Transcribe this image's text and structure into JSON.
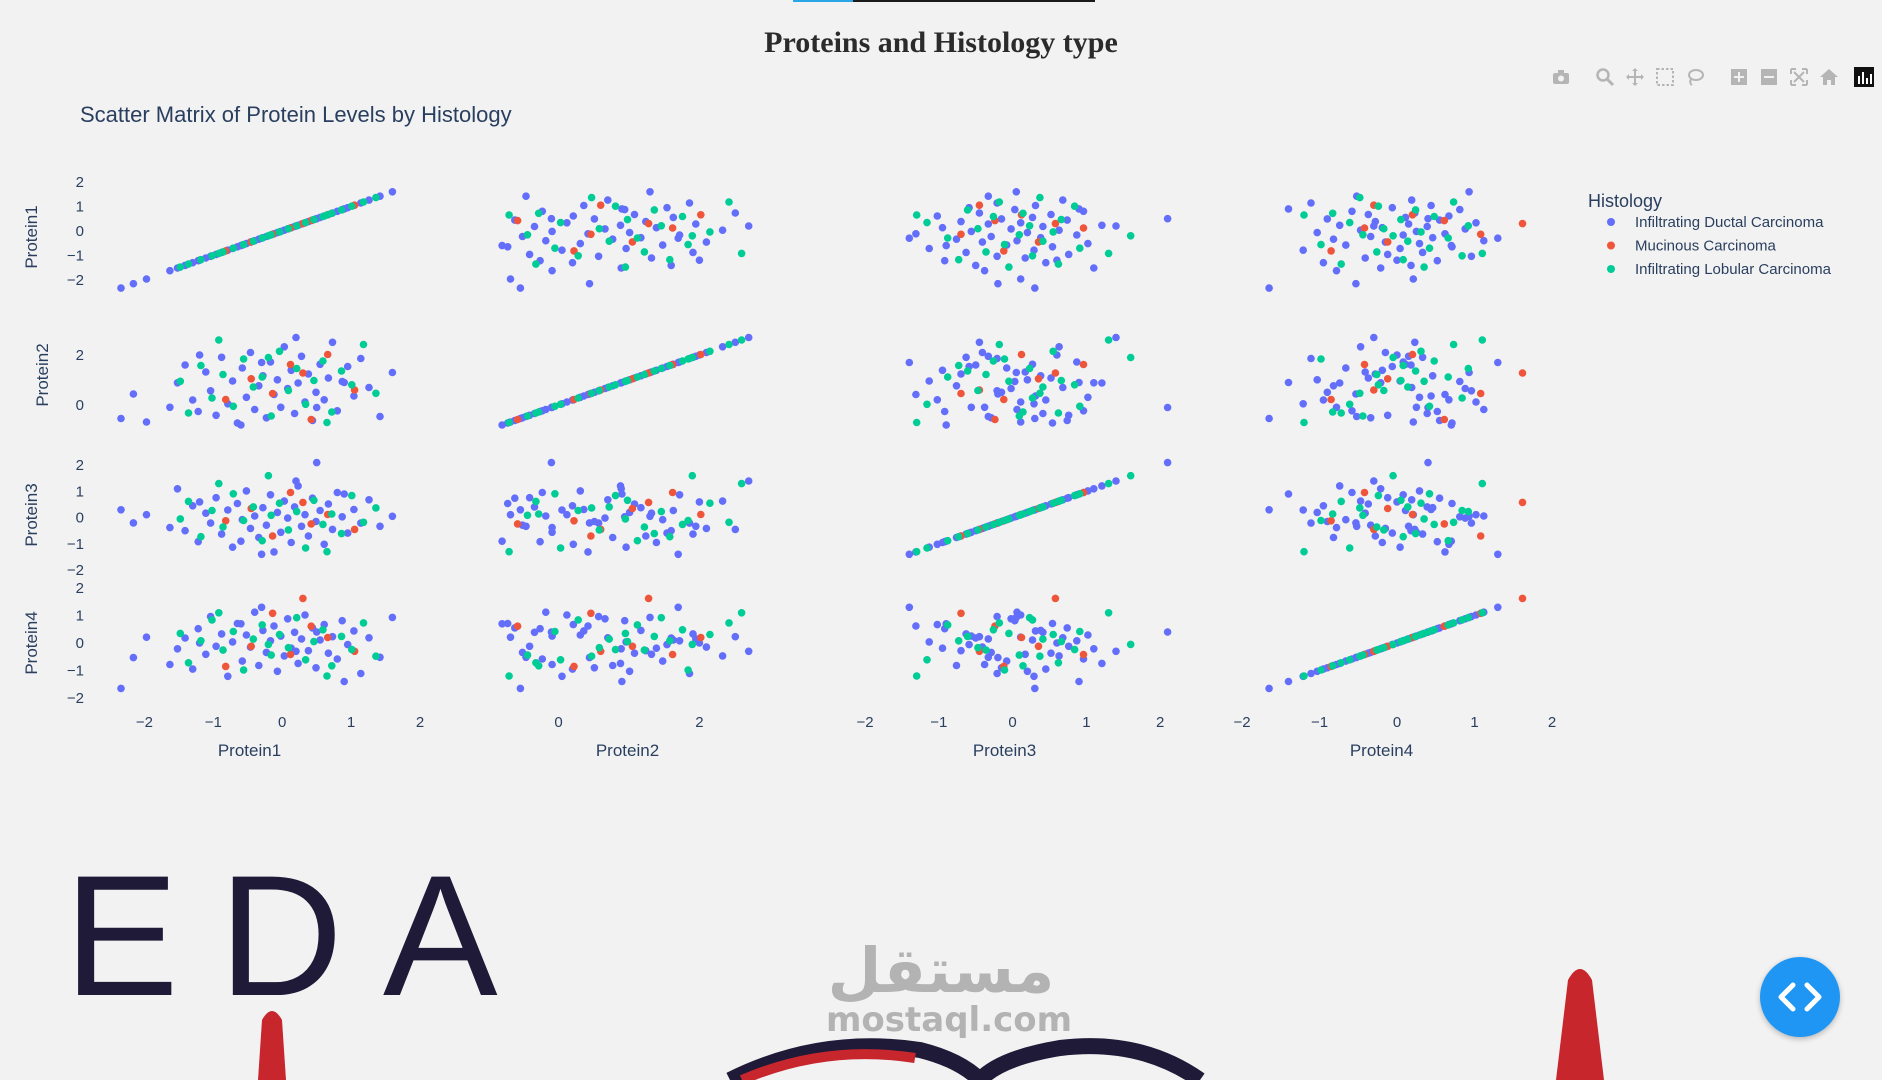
{
  "page": {
    "title": "Proteins and Histology type",
    "banner_text": "EDA",
    "watermark_arabic": "مستقل",
    "watermark_latin": "mostaql.com"
  },
  "modebar": {
    "buttons": [
      "camera-icon",
      "zoom-icon",
      "pan-icon",
      "box-select-icon",
      "lasso-icon",
      "zoom-in-icon",
      "zoom-out-icon",
      "autoscale-icon",
      "reset-axes-icon"
    ],
    "logo": "plotly-logo-icon"
  },
  "chart_data": {
    "type": "scatter-matrix",
    "title": "Scatter Matrix of Protein Levels by Histology",
    "dimensions": [
      "Protein1",
      "Protein2",
      "Protein3",
      "Protein4"
    ],
    "legend": {
      "title": "Histology",
      "placement": "top-right",
      "entries": [
        {
          "name": "Infiltrating Ductal Carcinoma",
          "color": "#636efa"
        },
        {
          "name": "Mucinous Carcinoma",
          "color": "#ef553b"
        },
        {
          "name": "Infiltrating Lobular Carcinoma",
          "color": "#00cc96"
        }
      ]
    },
    "axes": {
      "Protein1": {
        "range": [
          -2.5,
          2.0
        ],
        "ticks": [
          -2,
          -1,
          0,
          1,
          2
        ]
      },
      "Protein2": {
        "range": [
          -1.0,
          3.4
        ],
        "ticks": [
          0,
          2
        ]
      },
      "Protein3": {
        "range": [
          -2.0,
          2.2
        ],
        "ticks": [
          -2,
          -1,
          0,
          1,
          2
        ]
      },
      "Protein4": {
        "range": [
          -2.0,
          2.0
        ],
        "ticks": [
          -2,
          -1,
          0,
          1,
          2
        ]
      }
    },
    "points": [
      {
        "h": 0,
        "v": [
          -2.34,
          -0.54,
          0.3,
          -1.65
        ]
      },
      {
        "h": 0,
        "v": [
          -2.16,
          0.44,
          -0.2,
          -0.53
        ]
      },
      {
        "h": 0,
        "v": [
          -1.97,
          -0.68,
          0.11,
          0.21
        ]
      },
      {
        "h": 0,
        "v": [
          -1.63,
          -0.09,
          -0.38,
          -0.78
        ]
      },
      {
        "h": 0,
        "v": [
          -1.52,
          0.89,
          1.1,
          -0.21
        ]
      },
      {
        "h": 0,
        "v": [
          -1.41,
          1.6,
          -0.5,
          0.18
        ]
      },
      {
        "h": 0,
        "v": [
          -1.3,
          0.2,
          0.45,
          -0.95
        ]
      },
      {
        "h": 0,
        "v": [
          -1.22,
          -0.26,
          -0.92,
          0.52
        ]
      },
      {
        "h": 0,
        "v": [
          -1.11,
          1.32,
          0.17,
          -0.41
        ]
      },
      {
        "h": 0,
        "v": [
          -1.04,
          0.57,
          -0.21,
          0.96
        ]
      },
      {
        "h": 0,
        "v": [
          -0.96,
          -0.41,
          0.76,
          -0.12
        ]
      },
      {
        "h": 0,
        "v": [
          -0.88,
          1.91,
          -0.63,
          0.33
        ]
      },
      {
        "h": 0,
        "v": [
          -0.79,
          0.05,
          0.29,
          -1.21
        ]
      },
      {
        "h": 0,
        "v": [
          -0.72,
          0.96,
          -1.13,
          0.04
        ]
      },
      {
        "h": 0,
        "v": [
          -0.65,
          -0.72,
          0.54,
          0.71
        ]
      },
      {
        "h": 0,
        "v": [
          -0.58,
          1.48,
          -0.08,
          -0.66
        ]
      },
      {
        "h": 0,
        "v": [
          -0.52,
          0.31,
          1.02,
          0.29
        ]
      },
      {
        "h": 0,
        "v": [
          -0.46,
          2.1,
          -0.41,
          -0.15
        ]
      },
      {
        "h": 0,
        "v": [
          -0.4,
          -0.18,
          0.06,
          1.12
        ]
      },
      {
        "h": 0,
        "v": [
          -0.34,
          0.77,
          -0.76,
          -0.82
        ]
      },
      {
        "h": 0,
        "v": [
          -0.28,
          1.17,
          0.38,
          0.46
        ]
      },
      {
        "h": 0,
        "v": [
          -0.23,
          -0.51,
          -0.29,
          -0.34
        ]
      },
      {
        "h": 0,
        "v": [
          -0.17,
          1.72,
          0.87,
          0.08
        ]
      },
      {
        "h": 0,
        "v": [
          -0.12,
          0.42,
          -1.31,
          0.62
        ]
      },
      {
        "h": 0,
        "v": [
          -0.07,
          1.01,
          0.2,
          -1.03
        ]
      },
      {
        "h": 0,
        "v": [
          -0.02,
          -0.09,
          -0.56,
          0.25
        ]
      },
      {
        "h": 0,
        "v": [
          0.03,
          2.33,
          0.63,
          -0.47
        ]
      },
      {
        "h": 0,
        "v": [
          0.08,
          0.66,
          -0.02,
          0.88
        ]
      },
      {
        "h": 0,
        "v": [
          0.13,
          1.39,
          -0.95,
          -0.19
        ]
      },
      {
        "h": 0,
        "v": [
          0.18,
          -0.34,
          0.41,
          0.39
        ]
      },
      {
        "h": 0,
        "v": [
          0.23,
          0.88,
          1.21,
          -0.74
        ]
      },
      {
        "h": 0,
        "v": [
          0.28,
          1.95,
          -0.33,
          0.15
        ]
      },
      {
        "h": 0,
        "v": [
          0.33,
          0.12,
          0.11,
          1.02
        ]
      },
      {
        "h": 0,
        "v": [
          0.38,
          1.24,
          -0.7,
          -0.28
        ]
      },
      {
        "h": 0,
        "v": [
          0.44,
          -0.62,
          0.74,
          0.55
        ]
      },
      {
        "h": 0,
        "v": [
          0.49,
          0.51,
          -0.15,
          -0.9
        ]
      },
      {
        "h": 0,
        "v": [
          0.55,
          1.63,
          0.27,
          0.11
        ]
      },
      {
        "h": 0,
        "v": [
          0.61,
          0.21,
          -1.02,
          0.67
        ]
      },
      {
        "h": 0,
        "v": [
          0.67,
          1.08,
          0.52,
          -0.37
        ]
      },
      {
        "h": 0,
        "v": [
          0.73,
          2.51,
          -0.45,
          0.23
        ]
      },
      {
        "h": 0,
        "v": [
          0.8,
          -0.23,
          0.96,
          -0.58
        ]
      },
      {
        "h": 0,
        "v": [
          0.87,
          0.94,
          0.03,
          0.81
        ]
      },
      {
        "h": 0,
        "v": [
          0.95,
          1.54,
          -0.59,
          -0.06
        ]
      },
      {
        "h": 0,
        "v": [
          1.04,
          0.36,
          0.31,
          0.44
        ]
      },
      {
        "h": 0,
        "v": [
          1.14,
          1.86,
          -0.21,
          -1.11
        ]
      },
      {
        "h": 0,
        "v": [
          1.26,
          0.7,
          0.68,
          0.19
        ]
      },
      {
        "h": 0,
        "v": [
          1.42,
          -0.46,
          -0.33,
          -0.52
        ]
      },
      {
        "h": 0,
        "v": [
          1.6,
          1.3,
          0.05,
          0.93
        ]
      },
      {
        "h": 0,
        "v": [
          -0.6,
          -0.8,
          -0.9,
          0.7
        ]
      },
      {
        "h": 0,
        "v": [
          0.2,
          2.7,
          1.4,
          -0.3
        ]
      },
      {
        "h": 0,
        "v": [
          0.5,
          -0.1,
          2.1,
          0.4
        ]
      },
      {
        "h": 0,
        "v": [
          -0.3,
          1.7,
          -1.4,
          1.3
        ]
      },
      {
        "h": 0,
        "v": [
          0.9,
          0.9,
          0.9,
          -1.4
        ]
      },
      {
        "h": 0,
        "v": [
          -1.2,
          2.0,
          0.6,
          0.0
        ]
      },
      {
        "h": 1,
        "v": [
          -0.45,
          1.05,
          0.35,
          -0.12
        ]
      },
      {
        "h": 1,
        "v": [
          0.42,
          -0.58,
          -0.24,
          0.61
        ]
      },
      {
        "h": 1,
        "v": [
          0.12,
          1.62,
          0.96,
          -0.42
        ]
      },
      {
        "h": 1,
        "v": [
          -0.14,
          0.46,
          -0.7,
          1.08
        ]
      },
      {
        "h": 1,
        "v": [
          0.66,
          2.02,
          0.12,
          0.2
        ]
      },
      {
        "h": 1,
        "v": [
          -0.82,
          0.22,
          -0.12,
          -0.85
        ]
      },
      {
        "h": 1,
        "v": [
          0.3,
          1.28,
          0.58,
          1.62
        ]
      },
      {
        "h": 1,
        "v": [
          1.05,
          0.6,
          -0.45,
          -0.3
        ]
      },
      {
        "h": 2,
        "v": [
          -1.48,
          0.95,
          -0.05,
          0.35
        ]
      },
      {
        "h": 2,
        "v": [
          -1.36,
          -0.32,
          0.62,
          -0.72
        ]
      },
      {
        "h": 2,
        "v": [
          -1.18,
          1.58,
          -0.73,
          0.08
        ]
      },
      {
        "h": 2,
        "v": [
          -1.02,
          0.28,
          0.27,
          0.84
        ]
      },
      {
        "h": 2,
        "v": [
          -0.86,
          1.22,
          -0.36,
          -0.26
        ]
      },
      {
        "h": 2,
        "v": [
          -0.71,
          -0.05,
          0.91,
          0.42
        ]
      },
      {
        "h": 2,
        "v": [
          -0.56,
          1.84,
          -0.11,
          -0.98
        ]
      },
      {
        "h": 2,
        "v": [
          -0.42,
          0.72,
          0.41,
          0.14
        ]
      },
      {
        "h": 2,
        "v": [
          -0.29,
          1.12,
          -0.88,
          0.66
        ]
      },
      {
        "h": 2,
        "v": [
          -0.16,
          -0.44,
          0.09,
          -0.44
        ]
      },
      {
        "h": 2,
        "v": [
          -0.04,
          2.15,
          0.55,
          0.31
        ]
      },
      {
        "h": 2,
        "v": [
          0.09,
          0.58,
          -0.47,
          -0.17
        ]
      },
      {
        "h": 2,
        "v": [
          0.21,
          1.46,
          0.23,
          0.92
        ]
      },
      {
        "h": 2,
        "v": [
          0.34,
          0.03,
          -1.16,
          -0.61
        ]
      },
      {
        "h": 2,
        "v": [
          0.46,
          0.98,
          0.66,
          0.05
        ]
      },
      {
        "h": 2,
        "v": [
          0.59,
          1.76,
          -0.26,
          0.48
        ]
      },
      {
        "h": 2,
        "v": [
          0.72,
          -0.28,
          0.14,
          -0.83
        ]
      },
      {
        "h": 2,
        "v": [
          0.86,
          1.36,
          -0.61,
          0.24
        ]
      },
      {
        "h": 2,
        "v": [
          1.01,
          0.81,
          0.84,
          -0.24
        ]
      },
      {
        "h": 2,
        "v": [
          1.18,
          2.42,
          -0.18,
          0.73
        ]
      },
      {
        "h": 2,
        "v": [
          1.36,
          0.47,
          0.37,
          -0.48
        ]
      },
      {
        "h": 2,
        "v": [
          -0.92,
          2.6,
          1.3,
          1.1
        ]
      },
      {
        "h": 2,
        "v": [
          0.65,
          -0.7,
          -1.3,
          -1.2
        ]
      },
      {
        "h": 2,
        "v": [
          -0.2,
          1.9,
          1.6,
          -0.05
        ]
      }
    ]
  }
}
